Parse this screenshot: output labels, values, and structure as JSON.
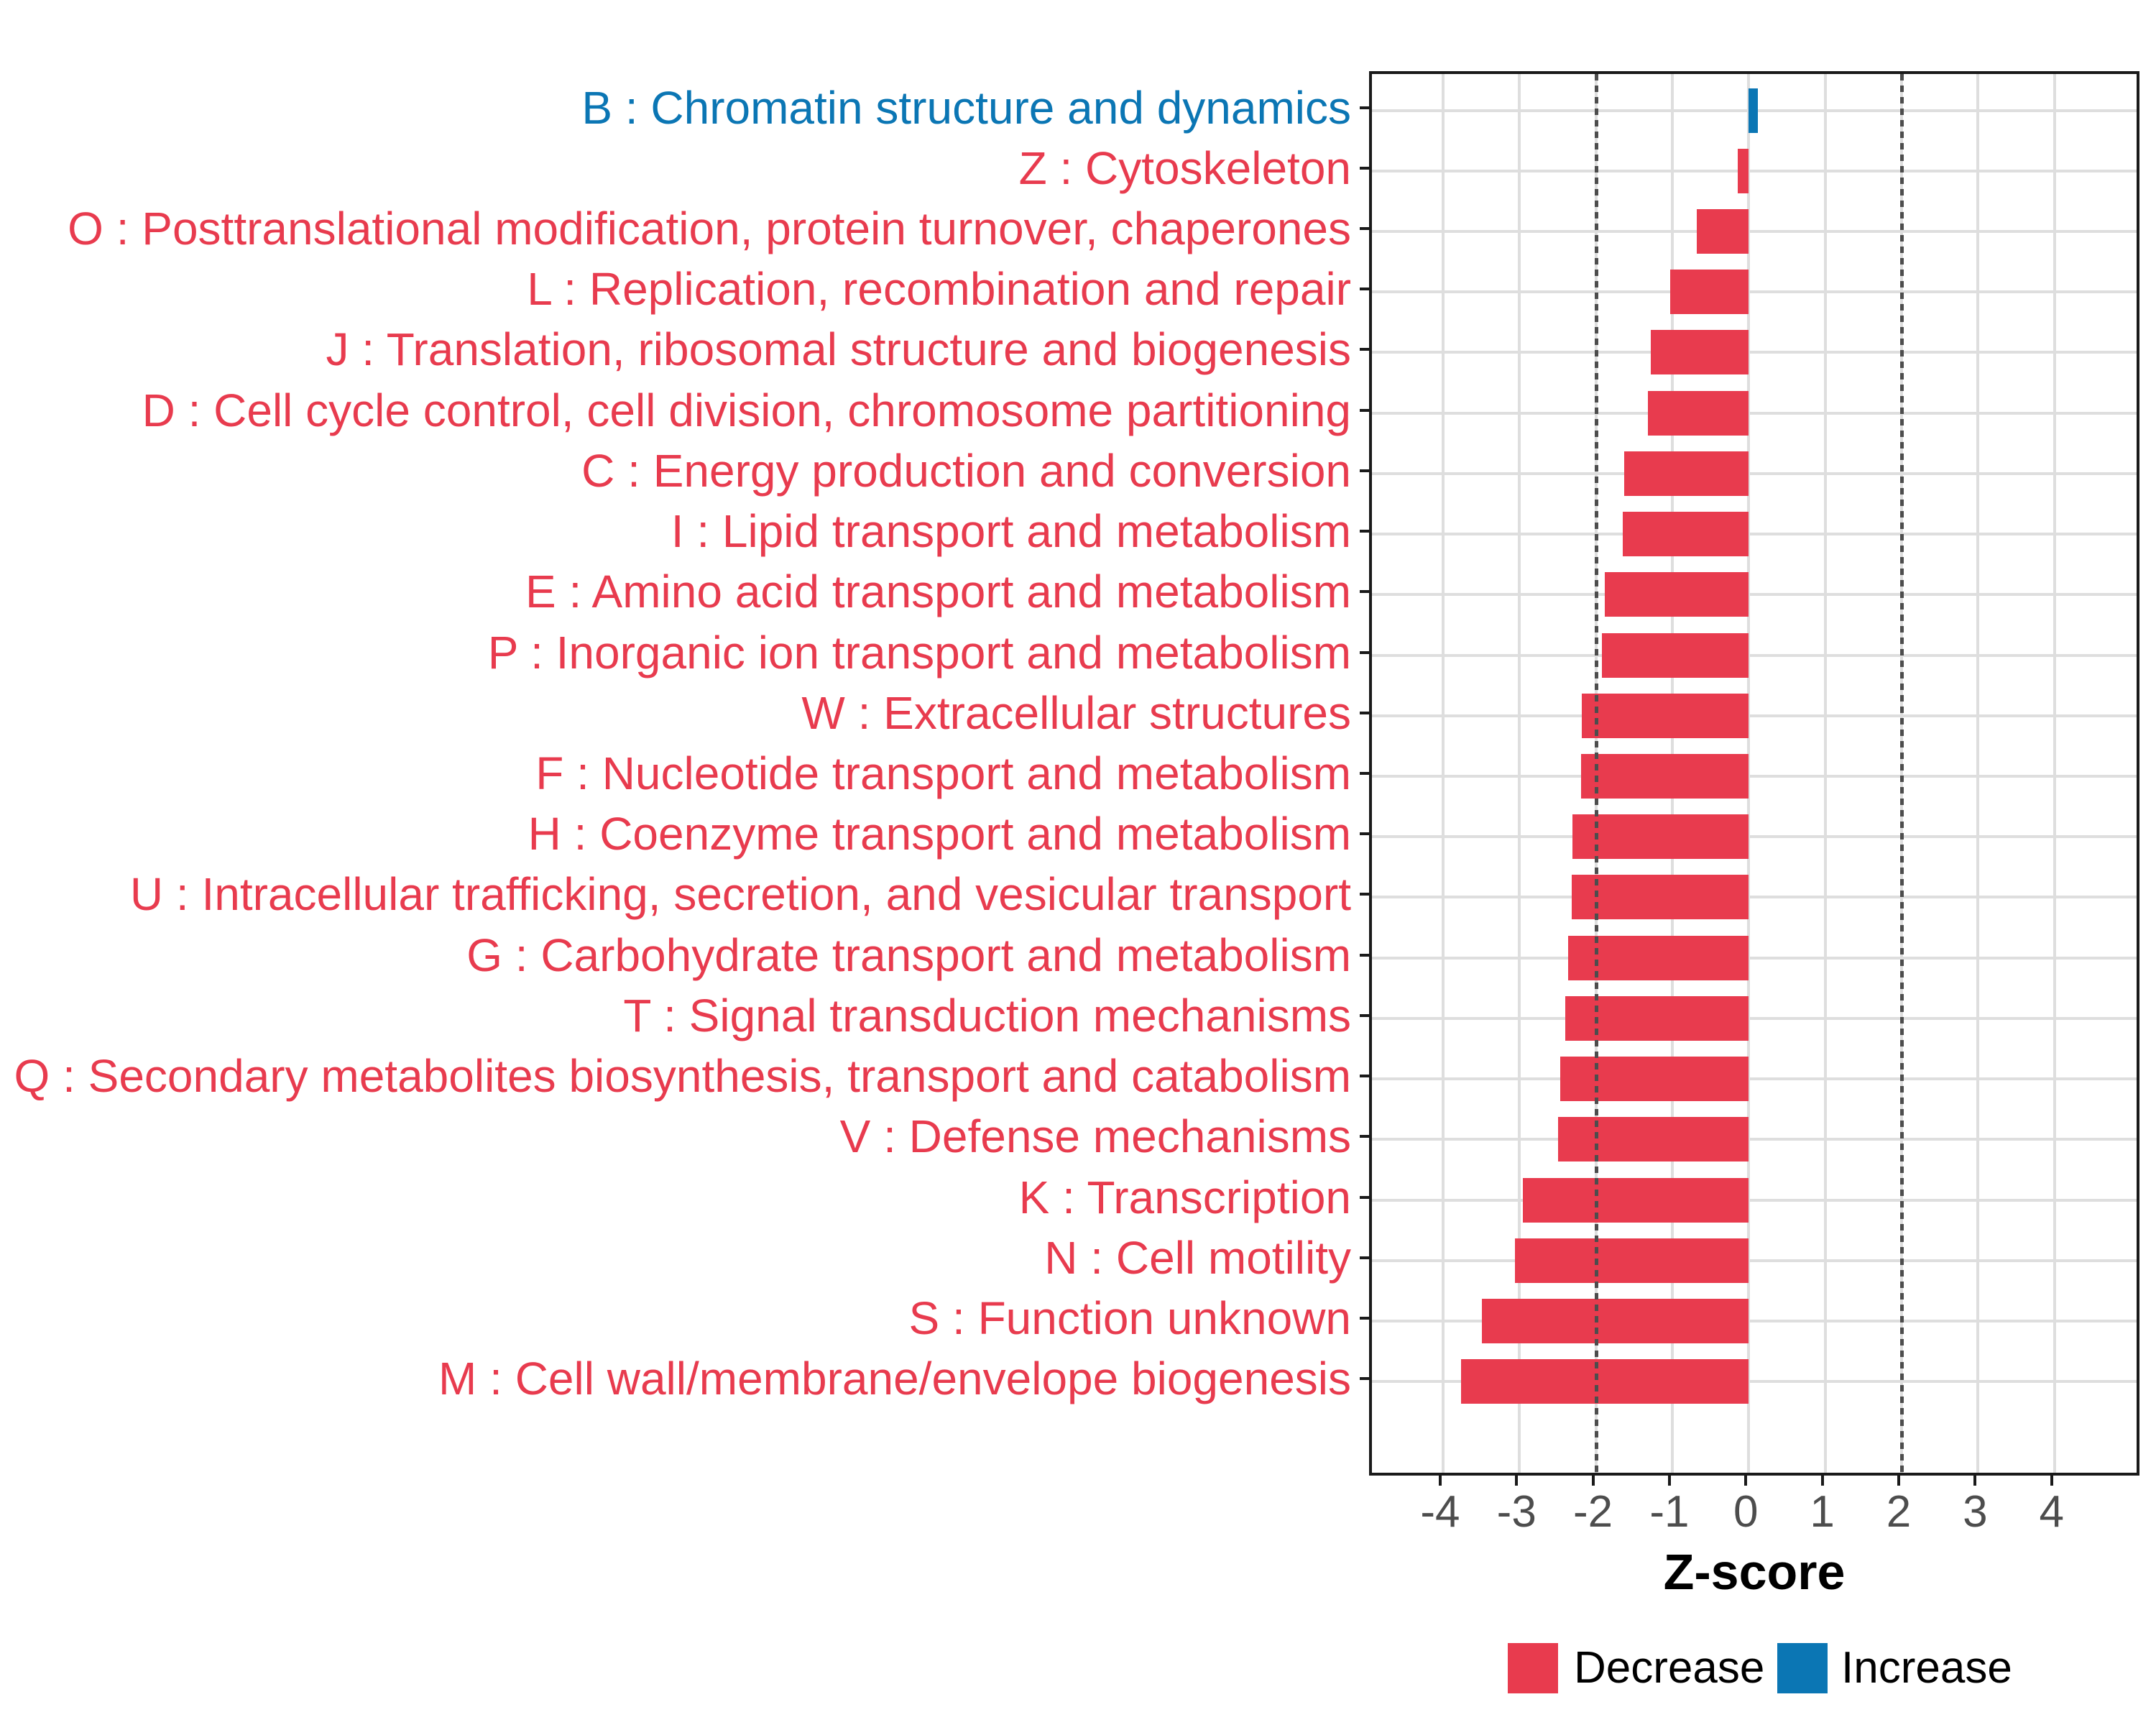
{
  "chart_data": {
    "type": "bar",
    "orientation": "horizontal",
    "title": "",
    "xlabel": "Z-score",
    "ylabel": "",
    "x_ticks": [
      -4,
      -3,
      -2,
      -1,
      0,
      1,
      2,
      3,
      4
    ],
    "x_range": [
      -4.93,
      5.15
    ],
    "reference_lines": [
      -2,
      2
    ],
    "grid": true,
    "categories": [
      {
        "label": "B : Chromatin structure and dynamics",
        "value": 0.12,
        "direction": "Increase"
      },
      {
        "label": "Z : Cytoskeleton",
        "value": -0.14,
        "direction": "Decrease"
      },
      {
        "label": "O : Posttranslational modification, protein turnover, chaperones",
        "value": -0.68,
        "direction": "Decrease"
      },
      {
        "label": "L : Replication, recombination and repair",
        "value": -1.03,
        "direction": "Decrease"
      },
      {
        "label": "J : Translation, ribosomal structure and biogenesis",
        "value": -1.28,
        "direction": "Decrease"
      },
      {
        "label": "D : Cell cycle control, cell division, chromosome partitioning",
        "value": -1.32,
        "direction": "Decrease"
      },
      {
        "label": "C : Energy production and conversion",
        "value": -1.63,
        "direction": "Decrease"
      },
      {
        "label": "I : Lipid transport and metabolism",
        "value": -1.65,
        "direction": "Decrease"
      },
      {
        "label": "E : Amino acid transport and metabolism",
        "value": -1.88,
        "direction": "Decrease"
      },
      {
        "label": "P : Inorganic ion transport and metabolism",
        "value": -1.92,
        "direction": "Decrease"
      },
      {
        "label": "W : Extracellular structures",
        "value": -2.18,
        "direction": "Decrease"
      },
      {
        "label": "F : Nucleotide transport and metabolism",
        "value": -2.19,
        "direction": "Decrease"
      },
      {
        "label": "H : Coenzyme transport and metabolism",
        "value": -2.31,
        "direction": "Decrease"
      },
      {
        "label": "U : Intracellular trafficking, secretion, and vesicular transport",
        "value": -2.32,
        "direction": "Decrease"
      },
      {
        "label": "G : Carbohydrate transport and metabolism",
        "value": -2.36,
        "direction": "Decrease"
      },
      {
        "label": "T : Signal transduction mechanisms",
        "value": -2.4,
        "direction": "Decrease"
      },
      {
        "label": "Q : Secondary metabolites biosynthesis, transport and catabolism",
        "value": -2.47,
        "direction": "Decrease"
      },
      {
        "label": "V : Defense mechanisms",
        "value": -2.49,
        "direction": "Decrease"
      },
      {
        "label": "K : Transcription",
        "value": -2.96,
        "direction": "Decrease"
      },
      {
        "label": "N : Cell motility",
        "value": -3.06,
        "direction": "Decrease"
      },
      {
        "label": "S : Function unknown",
        "value": -3.49,
        "direction": "Decrease"
      },
      {
        "label": "M : Cell wall/membrane/envelope biogenesis",
        "value": -3.76,
        "direction": "Decrease"
      }
    ],
    "legend": {
      "position": "bottom",
      "entries": [
        {
          "label": "Decrease",
          "color": "#e83b4e"
        },
        {
          "label": "Increase",
          "color": "#0b76b4"
        }
      ]
    }
  },
  "colors": {
    "decrease": "#e83b4e",
    "increase": "#0b76b4",
    "grid": "#dedede",
    "reference_line": "#4d4d4d",
    "axis_text": "#4d4d4d",
    "axis_title": "#000000",
    "panel_border": "#1a1a1a"
  }
}
